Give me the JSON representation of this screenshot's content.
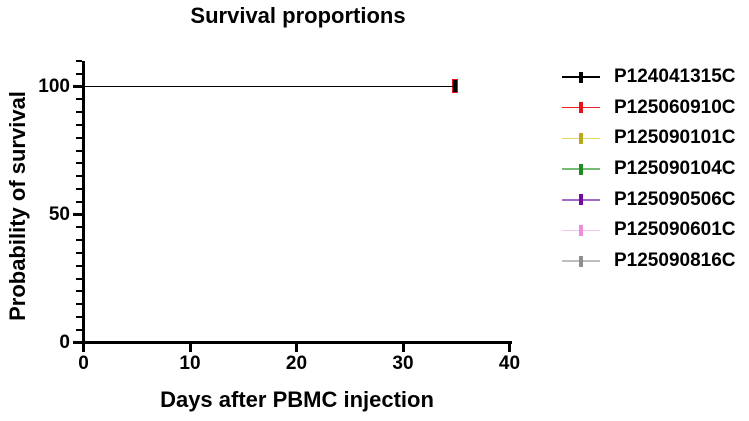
{
  "chart_data": {
    "type": "line",
    "subtype": "kaplan-meier-survival",
    "title": "Survival proportions",
    "xlabel": "Days after PBMC injection",
    "ylabel": "Probability of survival",
    "xlim": [
      0,
      40
    ],
    "ylim": [
      0,
      110
    ],
    "x_ticks": [
      0,
      10,
      20,
      30,
      40
    ],
    "x_tick_labels": [
      "0",
      "10",
      "20",
      "30",
      "40"
    ],
    "y_ticks": [
      0,
      50,
      100
    ],
    "y_tick_labels": [
      "0",
      "50",
      "100"
    ],
    "y_minor_tick_step": 5,
    "grid": false,
    "legend_position": "right",
    "series": [
      {
        "name": "P124041315C",
        "line_color": "#000000",
        "tick_color": "#000000",
        "x": [
          0,
          35
        ],
        "y": [
          100,
          100
        ],
        "censored_days": [
          35
        ]
      },
      {
        "name": "P125060910C",
        "line_color": "#F01E23",
        "tick_color": "#E3151B",
        "x": [
          0,
          35
        ],
        "y": [
          100,
          100
        ],
        "censored_days": [
          35
        ]
      },
      {
        "name": "P125090101C",
        "line_color": "#DFD95F",
        "tick_color": "#B9A81C",
        "x": [
          0,
          35
        ],
        "y": [
          100,
          100
        ],
        "censored_days": [
          35
        ]
      },
      {
        "name": "P125090104C",
        "line_color": "#76BB76",
        "tick_color": "#1E8C1E",
        "x": [
          0,
          35
        ],
        "y": [
          100,
          100
        ],
        "censored_days": [
          35
        ]
      },
      {
        "name": "P125090506C",
        "line_color": "#A468C5",
        "tick_color": "#720DA0",
        "x": [
          0,
          35
        ],
        "y": [
          100,
          100
        ],
        "censored_days": [
          35
        ]
      },
      {
        "name": "P125090601C",
        "line_color": "#F7C6EC",
        "tick_color": "#F08CD8",
        "x": [
          0,
          35
        ],
        "y": [
          100,
          100
        ],
        "censored_days": [
          35
        ]
      },
      {
        "name": "P125090816C",
        "line_color": "#BEBEBE",
        "tick_color": "#8E8E8E",
        "x": [
          0,
          35
        ],
        "y": [
          100,
          100
        ],
        "censored_days": [
          35
        ]
      }
    ]
  }
}
